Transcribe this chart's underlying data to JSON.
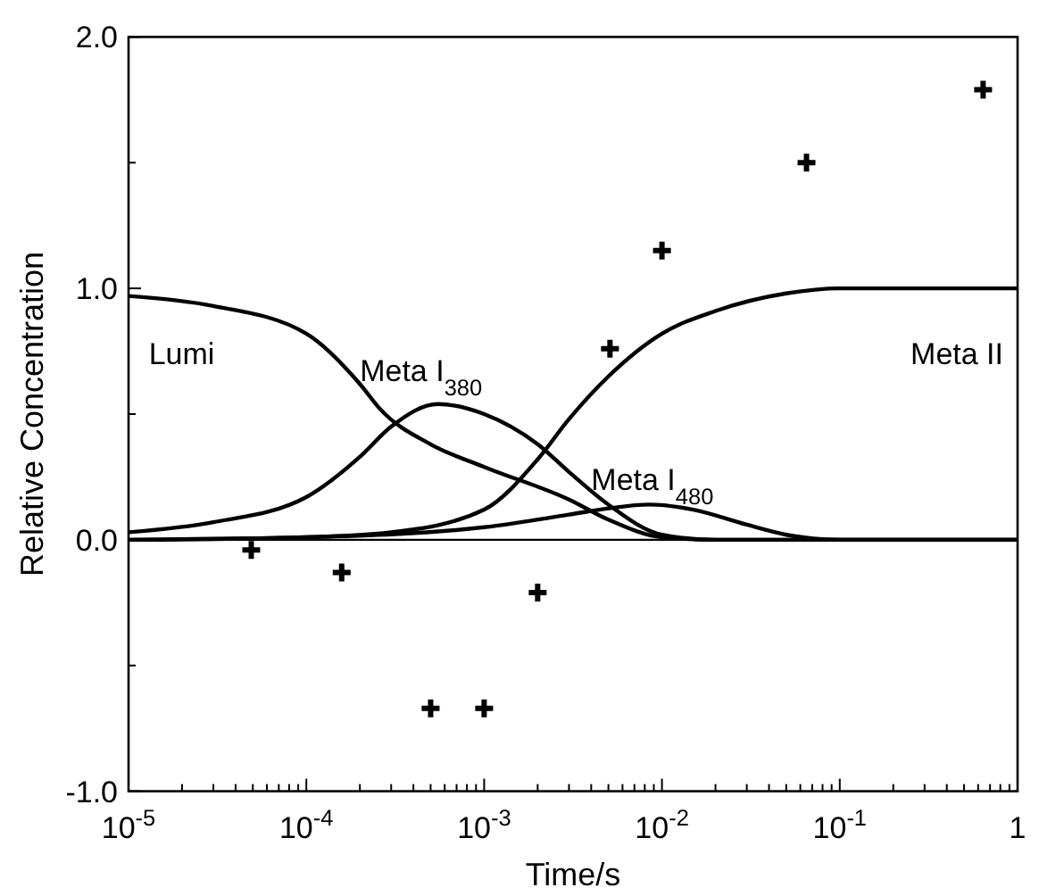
{
  "chart_data": {
    "type": "line",
    "xlabel": "Time/s",
    "ylabel": "Relative Concentration",
    "log": "x",
    "marker": "none",
    "line_style": "solid",
    "grid": false,
    "xlim": [
      1e-05,
      1
    ],
    "ylim": [
      -1,
      2
    ],
    "xticks": [
      {
        "value": 1e-05,
        "label": "10$^{-5}$"
      },
      {
        "value": 2e-05,
        "label": null
      },
      {
        "value": 3e-05,
        "label": null
      },
      {
        "value": 4e-05,
        "label": null
      },
      {
        "value": 5e-05,
        "label": null
      },
      {
        "value": 6e-05,
        "label": null
      },
      {
        "value": 7e-05,
        "label": null
      },
      {
        "value": 8e-05,
        "label": null
      },
      {
        "value": 9e-05,
        "label": null
      },
      {
        "value": 0.0001,
        "label": "10$^{-4}$"
      },
      {
        "value": 0.0002,
        "label": null
      },
      {
        "value": 0.0003,
        "label": null
      },
      {
        "value": 0.0004,
        "label": null
      },
      {
        "value": 0.0005,
        "label": null
      },
      {
        "value": 0.0006,
        "label": null
      },
      {
        "value": 0.0007,
        "label": null
      },
      {
        "value": 0.0008,
        "label": null
      },
      {
        "value": 0.0009,
        "label": null
      },
      {
        "value": 0.001,
        "label": "10$^{-3}$"
      },
      {
        "value": 0.002,
        "label": null
      },
      {
        "value": 0.003,
        "label": null
      },
      {
        "value": 0.004,
        "label": null
      },
      {
        "value": 0.005,
        "label": null
      },
      {
        "value": 0.006,
        "label": null
      },
      {
        "value": 0.007,
        "label": null
      },
      {
        "value": 0.008,
        "label": null
      },
      {
        "value": 0.009,
        "label": null
      },
      {
        "value": 0.01,
        "label": "10$^{-2}$"
      },
      {
        "value": 0.02,
        "label": null
      },
      {
        "value": 0.03,
        "label": null
      },
      {
        "value": 0.04,
        "label": null
      },
      {
        "value": 0.05,
        "label": null
      },
      {
        "value": 0.06,
        "label": null
      },
      {
        "value": 0.07,
        "label": null
      },
      {
        "value": 0.08,
        "label": null
      },
      {
        "value": 0.09,
        "label": null
      },
      {
        "value": 0.1,
        "label": "10$^{-1}$"
      },
      {
        "value": 0.2,
        "label": null
      },
      {
        "value": 0.3,
        "label": null
      },
      {
        "value": 0.4,
        "label": null
      },
      {
        "value": 0.5,
        "label": null
      },
      {
        "value": 0.6,
        "label": null
      },
      {
        "value": 0.7,
        "label": null
      },
      {
        "value": 0.8,
        "label": null
      },
      {
        "value": 0.9,
        "label": null
      },
      {
        "value": 1,
        "label": "1"
      }
    ],
    "yticks": [
      {
        "value": -1,
        "label": "-1.0"
      },
      {
        "value": -0.5,
        "label": null
      },
      {
        "value": 0,
        "label": "0.0"
      },
      {
        "value": 0.5,
        "label": null
      },
      {
        "value": 1,
        "label": "1.0"
      },
      {
        "value": 1.5,
        "label": null
      },
      {
        "value": 2,
        "label": "2.0"
      }
    ],
    "ref_lines": [
      {
        "axis": "y",
        "value": 0,
        "color": "#000000"
      }
    ],
    "series": [
      {
        "name": "Lumi",
        "color": "#000000",
        "x": [
          1e-05,
          3e-05,
          0.0001,
          0.0002,
          0.00026,
          0.0005,
          0.001,
          0.003,
          0.005,
          0.01,
          0.02,
          1
        ],
        "values": [
          0.97,
          0.93,
          0.82,
          0.62,
          0.52,
          0.38,
          0.29,
          0.16,
          0.08,
          0.01,
          0,
          0
        ]
      },
      {
        "name": "Meta I$_{380}$",
        "color": "#000000",
        "x": [
          1e-05,
          3e-05,
          0.0001,
          0.0002,
          0.0003,
          0.00055,
          0.001,
          0.002,
          0.003,
          0.005,
          0.01,
          0.02,
          1
        ],
        "values": [
          0.03,
          0.07,
          0.17,
          0.33,
          0.45,
          0.54,
          0.5,
          0.38,
          0.27,
          0.14,
          0.02,
          0,
          0
        ]
      },
      {
        "name": "Meta I$_{480}$",
        "color": "#000000",
        "x": [
          1e-05,
          0.0001,
          0.001,
          0.003,
          0.005,
          0.0085,
          0.015,
          0.03,
          0.05,
          0.1,
          1
        ],
        "values": [
          0,
          0.01,
          0.05,
          0.1,
          0.125,
          0.14,
          0.12,
          0.06,
          0.02,
          0,
          0
        ]
      },
      {
        "name": "Meta II",
        "color": "#000000",
        "x": [
          1e-05,
          0.0001,
          0.0003,
          0.001,
          0.002,
          0.003,
          0.005,
          0.01,
          0.02,
          0.05,
          0.1,
          0.3,
          1
        ],
        "values": [
          0,
          0.01,
          0.03,
          0.12,
          0.32,
          0.48,
          0.65,
          0.82,
          0.91,
          0.98,
          1,
          1,
          1
        ]
      },
      {
        "type": "scatter",
        "marker": "cross",
        "color": "#000000",
        "x": [
          4.9e-05,
          0.000158,
          0.0005,
          0.001,
          0.002,
          0.0051,
          0.01,
          0.065,
          0.64
        ],
        "values": [
          -0.04,
          -0.13,
          -0.67,
          -0.67,
          -0.21,
          0.76,
          1.15,
          1.5,
          1.79
        ]
      }
    ]
  }
}
